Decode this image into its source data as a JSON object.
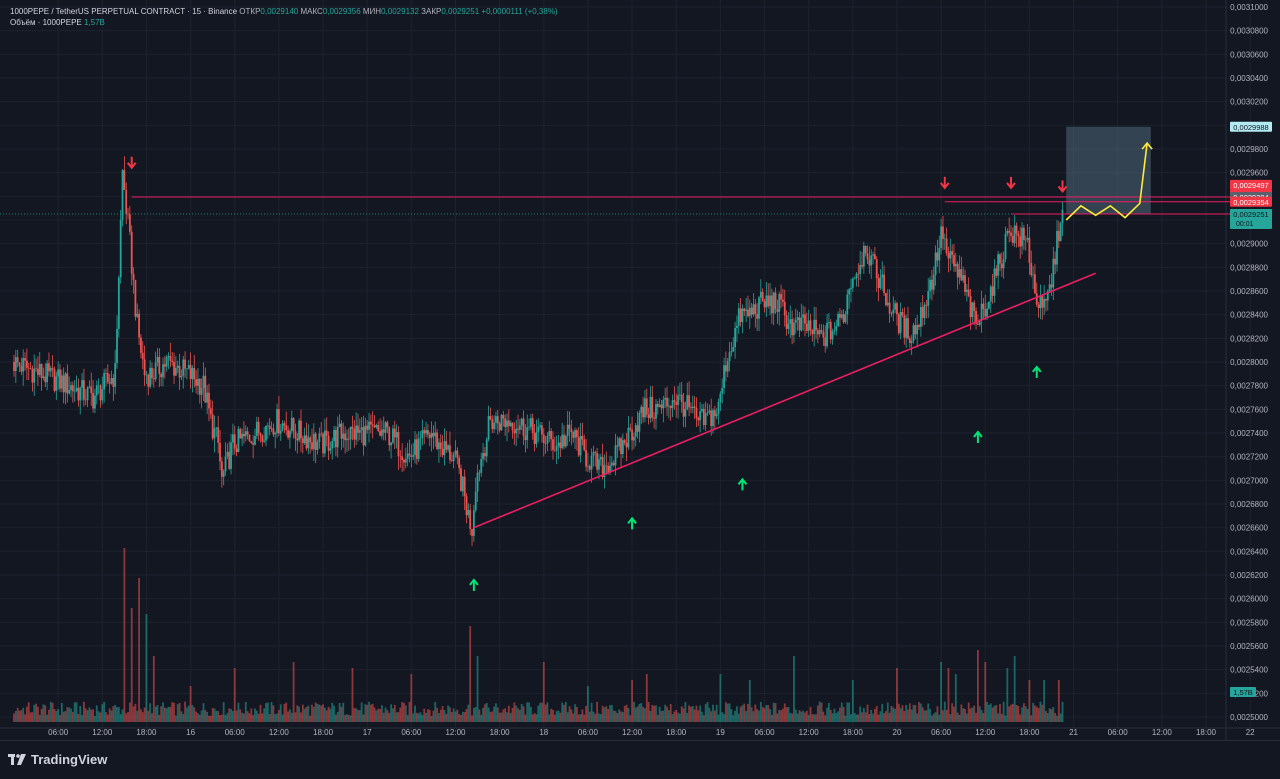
{
  "header": {
    "symbol": "1000PEPE / TetherUS PERPETUAL CONTRACT · 15 · Binance",
    "open_label": "ОТКР",
    "open_value": "0,0029140",
    "high_label": "МАКС",
    "high_value": "0,0029356",
    "low_label": "МИН",
    "low_value": "0,0029132",
    "close_label": "ЗАКР",
    "close_value": "0,0029251",
    "change": "+0,0000111 (+0,38%)",
    "volume_label": "Объём · 1000PEPE",
    "volume_value": "1,57B"
  },
  "brand": {
    "name": "TradingView"
  },
  "colors": {
    "background": "#131722",
    "up": "#26a69a",
    "down": "#ef5350",
    "grid": "#1e222d",
    "trendline": "#e91e63",
    "resistance": "#e91e63",
    "arrow_up": "#00e676",
    "arrow_down": "#f23645",
    "projection": "#ffeb3b",
    "zone": "#5d7a8c"
  },
  "chart_data": {
    "type": "candlestick",
    "y_axis": {
      "min": 0.0025,
      "max": 0.0031,
      "ticks": [
        "0,0031000",
        "0,0030800",
        "0,0030600",
        "0,0030400",
        "0,0030200",
        "0,0030000",
        "0,0029800",
        "0,0029600",
        "0,0029400",
        "0,0029200",
        "0,0029000",
        "0,0028800",
        "0,0028600",
        "0,0028400",
        "0,0028200",
        "0,0028000",
        "0,0027800",
        "0,0027600",
        "0,0027400",
        "0,0027200",
        "0,0027000",
        "0,0026800",
        "0,0026600",
        "0,0026400",
        "0,0026200",
        "0,0026000",
        "0,0025800",
        "0,0025600",
        "0,0025400",
        "0,0025200",
        "0,0025000"
      ],
      "tick_values": [
        0.0031,
        0.00308,
        0.00306,
        0.00304,
        0.00302,
        0.003,
        0.00298,
        0.00296,
        0.00294,
        0.00292,
        0.0029,
        0.00288,
        0.00286,
        0.00284,
        0.00282,
        0.0028,
        0.00278,
        0.00276,
        0.00274,
        0.00272,
        0.0027,
        0.00268,
        0.00266,
        0.00264,
        0.00262,
        0.0026,
        0.00258,
        0.00256,
        0.00254,
        0.00252,
        0.0025
      ]
    },
    "x_axis": {
      "labels": [
        "06:00",
        "12:00",
        "18:00",
        "16",
        "06:00",
        "12:00",
        "18:00",
        "17",
        "06:00",
        "12:00",
        "18:00",
        "18",
        "06:00",
        "12:00",
        "18:00",
        "19",
        "06:00",
        "12:00",
        "18:00",
        "20",
        "06:00",
        "12:00",
        "18:00",
        "21",
        "06:00",
        "12:00",
        "18:00",
        "22"
      ],
      "hours": [
        6,
        12,
        18,
        24,
        30,
        36,
        42,
        48,
        54,
        60,
        66,
        72,
        78,
        84,
        90,
        96,
        102,
        108,
        114,
        120,
        126,
        132,
        138,
        144,
        150,
        156,
        162,
        168
      ]
    },
    "price_path": [
      [
        0,
        0.0028
      ],
      [
        6,
        0.002785
      ],
      [
        11,
        0.00277
      ],
      [
        14,
        0.00279
      ],
      [
        15,
        0.00296
      ],
      [
        16,
        0.0029
      ],
      [
        17,
        0.00283
      ],
      [
        18,
        0.00279
      ],
      [
        19,
        0.00279
      ],
      [
        21,
        0.0028
      ],
      [
        24,
        0.00279
      ],
      [
        26,
        0.00278
      ],
      [
        27,
        0.00275
      ],
      [
        28,
        0.00273
      ],
      [
        28.5,
        0.0027
      ],
      [
        30,
        0.00273
      ],
      [
        33,
        0.00274
      ],
      [
        36,
        0.00275
      ],
      [
        39,
        0.00274
      ],
      [
        42,
        0.00273
      ],
      [
        45,
        0.00274
      ],
      [
        48,
        0.00274
      ],
      [
        51,
        0.00274
      ],
      [
        54,
        0.00272
      ],
      [
        57,
        0.00274
      ],
      [
        58,
        0.00273
      ],
      [
        60,
        0.00272
      ],
      [
        61,
        0.0027
      ],
      [
        62,
        0.00267
      ],
      [
        62.5,
        0.00266
      ],
      [
        63,
        0.0027
      ],
      [
        65,
        0.00275
      ],
      [
        68,
        0.00275
      ],
      [
        71,
        0.00274
      ],
      [
        74,
        0.00273
      ],
      [
        76,
        0.00274
      ],
      [
        78,
        0.00272
      ],
      [
        80,
        0.00271
      ],
      [
        82,
        0.00272
      ],
      [
        84,
        0.00274
      ],
      [
        86,
        0.00276
      ],
      [
        88,
        0.00276
      ],
      [
        90,
        0.00277
      ],
      [
        92,
        0.00276
      ],
      [
        93,
        0.00275
      ],
      [
        94,
        0.00275
      ],
      [
        96,
        0.00276
      ],
      [
        97,
        0.0028
      ],
      [
        98,
        0.00282
      ],
      [
        99,
        0.00284
      ],
      [
        100,
        0.00284
      ],
      [
        102,
        0.00285
      ],
      [
        104,
        0.00285
      ],
      [
        105,
        0.00284
      ],
      [
        106,
        0.00283
      ],
      [
        108,
        0.00283
      ],
      [
        110,
        0.00282
      ],
      [
        112,
        0.00283
      ],
      [
        113,
        0.00284
      ],
      [
        114,
        0.00287
      ],
      [
        115,
        0.00288
      ],
      [
        116,
        0.0029
      ],
      [
        117,
        0.00288
      ],
      [
        118,
        0.00287
      ],
      [
        119,
        0.00285
      ],
      [
        120,
        0.00284
      ],
      [
        121,
        0.00283
      ],
      [
        122,
        0.002825
      ],
      [
        123,
        0.00283
      ],
      [
        124,
        0.00285
      ],
      [
        125,
        0.00287
      ],
      [
        126,
        0.0029
      ],
      [
        126.5,
        0.00291
      ],
      [
        127,
        0.00289
      ],
      [
        128,
        0.00288
      ],
      [
        129,
        0.00287
      ],
      [
        130,
        0.00285
      ],
      [
        131,
        0.00283
      ],
      [
        132,
        0.002845
      ],
      [
        133,
        0.00286
      ],
      [
        134,
        0.00288
      ],
      [
        135,
        0.0029
      ],
      [
        135.5,
        0.002915
      ],
      [
        136,
        0.00291
      ],
      [
        137,
        0.002905
      ],
      [
        138,
        0.0029
      ],
      [
        139,
        0.00286
      ],
      [
        140,
        0.00284
      ],
      [
        141,
        0.00286
      ],
      [
        142,
        0.0029
      ],
      [
        142.5,
        0.002925
      ]
    ],
    "volume_spikes": [
      [
        15,
        1.45
      ],
      [
        16,
        0.95
      ],
      [
        17,
        1.2
      ],
      [
        18,
        0.9
      ],
      [
        19,
        0.55
      ],
      [
        24,
        0.3
      ],
      [
        30,
        0.45
      ],
      [
        38,
        0.5
      ],
      [
        46,
        0.45
      ],
      [
        54,
        0.4
      ],
      [
        62,
        0.8
      ],
      [
        63,
        0.55
      ],
      [
        72,
        0.5
      ],
      [
        78,
        0.3
      ],
      [
        84,
        0.35
      ],
      [
        86,
        0.4
      ],
      [
        96,
        0.4
      ],
      [
        100,
        0.35
      ],
      [
        106,
        0.55
      ],
      [
        114,
        0.35
      ],
      [
        120,
        0.45
      ],
      [
        126,
        0.5
      ],
      [
        127,
        0.45
      ],
      [
        128,
        0.4
      ],
      [
        131,
        0.6
      ],
      [
        132,
        0.5
      ],
      [
        135,
        0.45
      ],
      [
        136,
        0.55
      ],
      [
        138,
        0.35
      ],
      [
        140,
        0.35
      ],
      [
        142,
        0.35
      ]
    ],
    "last_price": "0,0029251",
    "countdown": "00:01",
    "price_labels": [
      {
        "text": "0,0029988",
        "value": 0.0029988,
        "style": "zone-top"
      },
      {
        "text": "0,0029497",
        "value": 0.0029497,
        "style": "red"
      },
      {
        "text": "0,0029415",
        "value": 0.0029415,
        "style": "red"
      },
      {
        "text": "0,0029394",
        "value": 0.0029394,
        "style": "grey"
      },
      {
        "text": "0,0029354",
        "value": 0.0029354,
        "style": "red"
      },
      {
        "text": "0,0029251",
        "value": 0.0029251,
        "style": "red"
      }
    ],
    "volume_label": "1,57B",
    "annotations": {
      "resistance_lines": [
        {
          "from_hour": 16,
          "to_hour": 170,
          "value": 0.0029394
        },
        {
          "from_hour": 126.5,
          "to_hour": 170,
          "value": 0.0029354
        },
        {
          "from_hour": 135.5,
          "to_hour": 170,
          "value": 0.0029251
        }
      ],
      "trendline": {
        "from": [
          62.5,
          0.00266
        ],
        "to": [
          147,
          0.002875
        ]
      },
      "arrows_down": [
        [
          16,
          0.002955
        ],
        [
          126.5,
          0.002938
        ],
        [
          135.5,
          0.002938
        ],
        [
          142.5,
          0.002935
        ]
      ],
      "arrows_up": [
        [
          62.5,
          0.002655
        ],
        [
          84,
          0.002707
        ],
        [
          99,
          0.00274
        ],
        [
          131,
          0.00278
        ],
        [
          139,
          0.002835
        ]
      ],
      "projection": [
        [
          143,
          0.00292
        ],
        [
          145,
          0.002932
        ],
        [
          147,
          0.002924
        ],
        [
          149,
          0.002932
        ],
        [
          151,
          0.002922
        ],
        [
          153,
          0.002934
        ],
        [
          154,
          0.002985
        ]
      ],
      "zone": {
        "from_hour": 143,
        "to_hour": 154.5,
        "top": 0.0029988,
        "bottom": 0.0029251
      }
    }
  }
}
